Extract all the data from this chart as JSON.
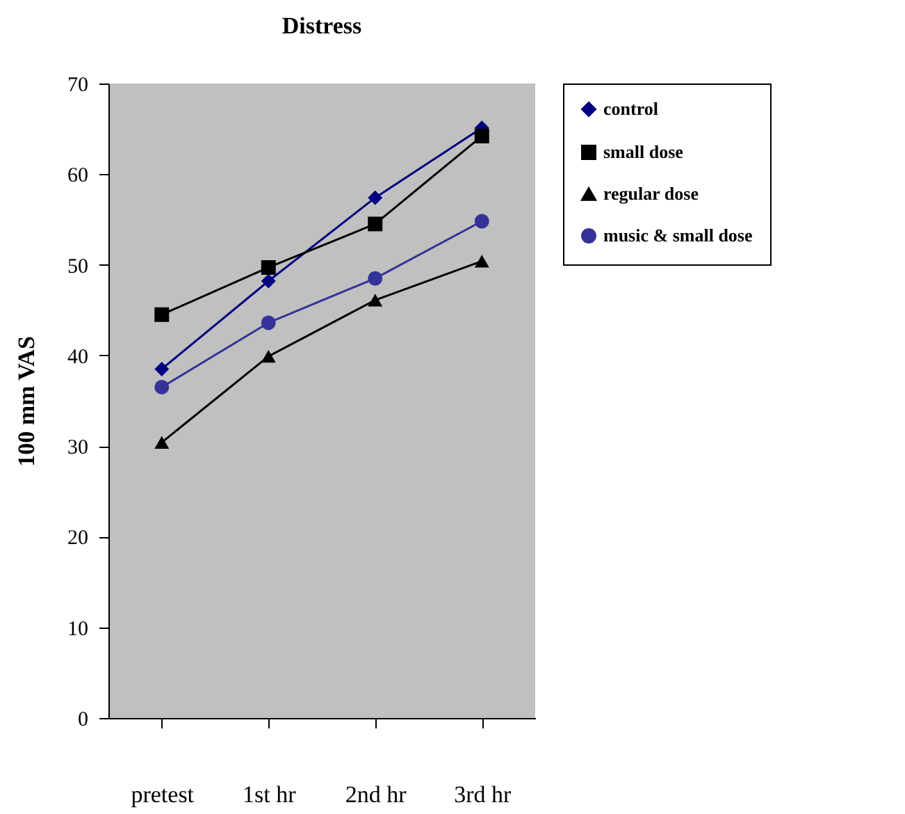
{
  "chart_data": {
    "type": "line",
    "title": "Distress",
    "ylabel": "100 mm VAS",
    "categories": [
      "pretest",
      "1st hr",
      "2nd hr",
      "3rd hr"
    ],
    "series": [
      {
        "name": "control",
        "color": "#000080",
        "marker": "diamond",
        "values": [
          38.5,
          48.2,
          57.4,
          65.1
        ]
      },
      {
        "name": "small dose",
        "color": "#000000",
        "marker": "square",
        "values": [
          44.5,
          49.7,
          54.5,
          64.2
        ]
      },
      {
        "name": "regular dose",
        "color": "#000000",
        "marker": "triangle",
        "values": [
          30.4,
          39.9,
          46.1,
          50.4
        ]
      },
      {
        "name": "music & small dose",
        "color": "#333399",
        "marker": "circle",
        "values": [
          36.5,
          43.6,
          48.5,
          54.8
        ]
      }
    ],
    "ylim": [
      0,
      70
    ],
    "yticks": [
      0,
      10,
      20,
      30,
      40,
      50,
      60,
      70
    ],
    "grid": false,
    "legend": "top right"
  }
}
